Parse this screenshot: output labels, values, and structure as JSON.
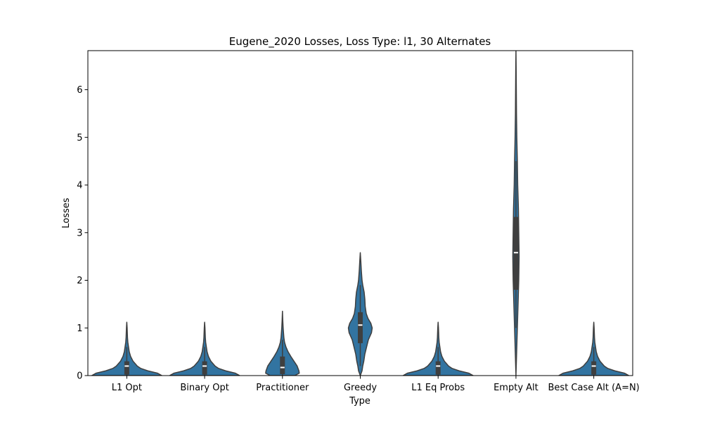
{
  "chart_data": {
    "type": "violin",
    "title": "Eugene_2020 Losses, Loss Type: l1, 30 Alternates",
    "xlabel": "Type",
    "ylabel": "Losses",
    "ylim": [
      0,
      6.82
    ],
    "yticks": [
      0,
      1,
      2,
      3,
      4,
      5,
      6
    ],
    "fill_color": "#3274a1",
    "edge_color": "#3f3f3f",
    "categories": [
      "L1 Opt",
      "Binary Opt",
      "Practitioner",
      "Greedy",
      "L1 Eq Probs",
      "Empty Alt",
      "Best Case Alt (A=N)"
    ],
    "violins": [
      {
        "category": "L1 Opt",
        "profile": [
          [
            0,
            1.0
          ],
          [
            0.05,
            0.88
          ],
          [
            0.1,
            0.6
          ],
          [
            0.15,
            0.4
          ],
          [
            0.2,
            0.3
          ],
          [
            0.3,
            0.18
          ],
          [
            0.4,
            0.11
          ],
          [
            0.5,
            0.07
          ],
          [
            0.6,
            0.05
          ],
          [
            0.7,
            0.03
          ],
          [
            0.8,
            0.02
          ],
          [
            0.9,
            0.015
          ],
          [
            1.0,
            0.01
          ],
          [
            1.12,
            0.0
          ]
        ],
        "q1": 0.02,
        "median": 0.2,
        "q3": 0.3,
        "whisker_low": 0.0,
        "whisker_high": 0.6
      },
      {
        "category": "Binary Opt",
        "profile": [
          [
            0,
            1.0
          ],
          [
            0.05,
            0.88
          ],
          [
            0.1,
            0.6
          ],
          [
            0.15,
            0.4
          ],
          [
            0.2,
            0.3
          ],
          [
            0.3,
            0.18
          ],
          [
            0.4,
            0.11
          ],
          [
            0.5,
            0.07
          ],
          [
            0.6,
            0.05
          ],
          [
            0.7,
            0.03
          ],
          [
            0.8,
            0.02
          ],
          [
            0.9,
            0.015
          ],
          [
            1.0,
            0.01
          ],
          [
            1.12,
            0.0
          ]
        ],
        "q1": 0.02,
        "median": 0.2,
        "q3": 0.3,
        "whisker_low": 0.0,
        "whisker_high": 0.6
      },
      {
        "category": "Practitioner",
        "profile": [
          [
            0,
            0.35
          ],
          [
            0.05,
            0.48
          ],
          [
            0.1,
            0.47
          ],
          [
            0.2,
            0.42
          ],
          [
            0.3,
            0.33
          ],
          [
            0.4,
            0.24
          ],
          [
            0.5,
            0.16
          ],
          [
            0.6,
            0.1
          ],
          [
            0.7,
            0.06
          ],
          [
            0.8,
            0.04
          ],
          [
            0.9,
            0.03
          ],
          [
            1.0,
            0.02
          ],
          [
            1.15,
            0.01
          ],
          [
            1.35,
            0.0
          ]
        ],
        "q1": 0.03,
        "median": 0.17,
        "q3": 0.4,
        "whisker_low": 0.0,
        "whisker_high": 0.75
      },
      {
        "category": "Greedy",
        "profile": [
          [
            0.0,
            0.0
          ],
          [
            0.1,
            0.05
          ],
          [
            0.2,
            0.07
          ],
          [
            0.3,
            0.1
          ],
          [
            0.45,
            0.13
          ],
          [
            0.6,
            0.18
          ],
          [
            0.75,
            0.23
          ],
          [
            0.9,
            0.32
          ],
          [
            1.0,
            0.34
          ],
          [
            1.1,
            0.3
          ],
          [
            1.2,
            0.22
          ],
          [
            1.3,
            0.17
          ],
          [
            1.45,
            0.14
          ],
          [
            1.6,
            0.13
          ],
          [
            1.75,
            0.11
          ],
          [
            1.9,
            0.07
          ],
          [
            2.0,
            0.05
          ],
          [
            2.2,
            0.03
          ],
          [
            2.4,
            0.015
          ],
          [
            2.58,
            0.0
          ]
        ],
        "q1": 0.68,
        "median": 1.06,
        "q3": 1.33,
        "whisker_low": 0.2,
        "whisker_high": 1.9
      },
      {
        "category": "L1 Eq Probs",
        "profile": [
          [
            0,
            1.0
          ],
          [
            0.05,
            0.88
          ],
          [
            0.1,
            0.6
          ],
          [
            0.15,
            0.4
          ],
          [
            0.2,
            0.3
          ],
          [
            0.3,
            0.18
          ],
          [
            0.4,
            0.11
          ],
          [
            0.5,
            0.07
          ],
          [
            0.6,
            0.05
          ],
          [
            0.7,
            0.03
          ],
          [
            0.8,
            0.02
          ],
          [
            0.9,
            0.015
          ],
          [
            1.0,
            0.01
          ],
          [
            1.12,
            0.0
          ]
        ],
        "q1": 0.02,
        "median": 0.2,
        "q3": 0.3,
        "whisker_low": 0.0,
        "whisker_high": 0.6
      },
      {
        "category": "Empty Alt",
        "profile": [
          [
            0.0,
            0.0
          ],
          [
            0.5,
            0.02
          ],
          [
            1.0,
            0.04
          ],
          [
            1.5,
            0.06
          ],
          [
            2.0,
            0.08
          ],
          [
            2.5,
            0.09
          ],
          [
            3.0,
            0.08
          ],
          [
            3.5,
            0.07
          ],
          [
            4.0,
            0.05
          ],
          [
            4.5,
            0.04
          ],
          [
            5.0,
            0.025
          ],
          [
            5.5,
            0.015
          ],
          [
            6.0,
            0.01
          ],
          [
            6.5,
            0.005
          ],
          [
            6.85,
            0.0
          ]
        ],
        "q1": 1.8,
        "median": 2.58,
        "q3": 3.33,
        "whisker_low": 1.0,
        "whisker_high": 4.5
      },
      {
        "category": "Best Case Alt (A=N)",
        "profile": [
          [
            0,
            1.0
          ],
          [
            0.05,
            0.88
          ],
          [
            0.1,
            0.6
          ],
          [
            0.15,
            0.4
          ],
          [
            0.2,
            0.3
          ],
          [
            0.3,
            0.18
          ],
          [
            0.4,
            0.11
          ],
          [
            0.5,
            0.07
          ],
          [
            0.6,
            0.05
          ],
          [
            0.7,
            0.03
          ],
          [
            0.8,
            0.02
          ],
          [
            0.9,
            0.015
          ],
          [
            1.0,
            0.01
          ],
          [
            1.12,
            0.0
          ]
        ],
        "q1": 0.02,
        "median": 0.2,
        "q3": 0.3,
        "whisker_low": 0.0,
        "whisker_high": 0.6
      }
    ]
  }
}
